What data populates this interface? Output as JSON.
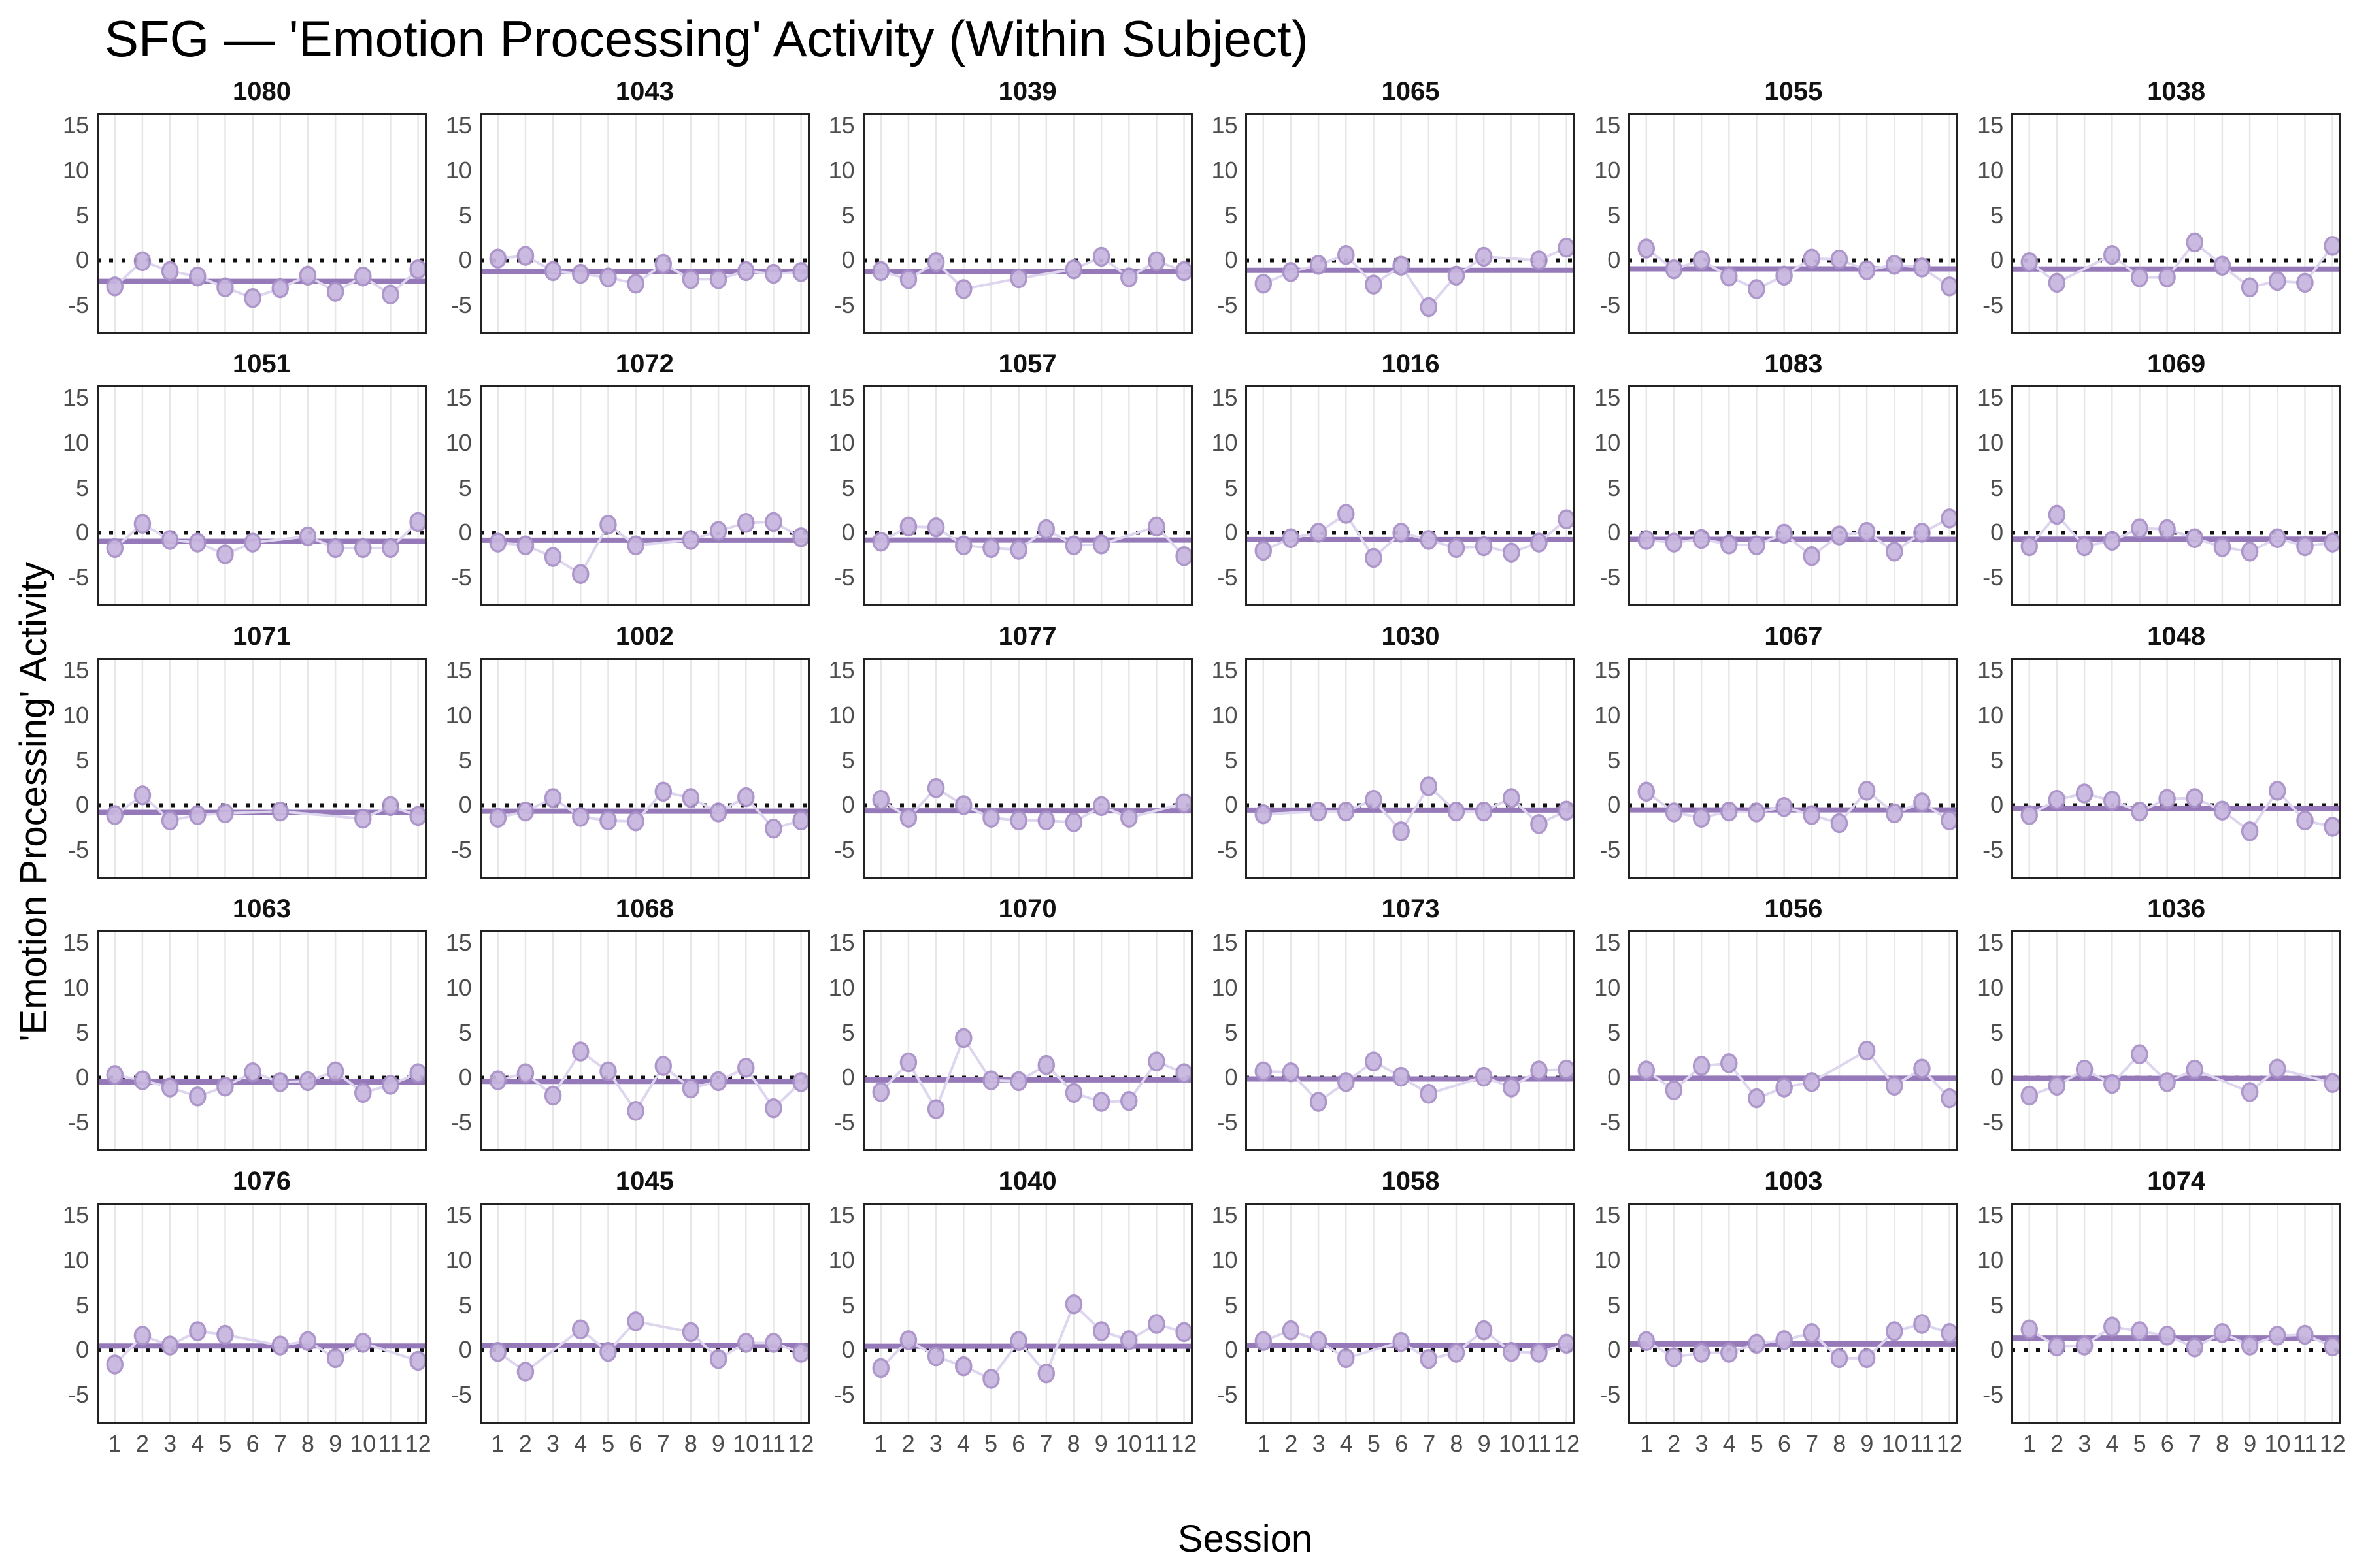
{
  "title": "SFG — 'Emotion Processing' Activity (Within Subject)",
  "ylabel": "'Emotion Processing' Activity",
  "xlabel": "Session",
  "colors": {
    "mean_line": "#9579b8",
    "point_fill": "#c8b6df",
    "point_stroke": "#a78fc7",
    "connector": "#ded5ee",
    "zero_line": "#111111",
    "gridline": "#e7e7e7",
    "panel_border": "#222222",
    "tick_text": "#4d4d4d",
    "title_text": "#000000"
  },
  "chart_data": {
    "type": "scatter",
    "layout": "facet-grid 5 rows x 6 cols, one panel per subject",
    "x_label": "Session",
    "y_label": "'Emotion Processing' Activity",
    "x": [
      1,
      2,
      3,
      4,
      5,
      6,
      7,
      8,
      9,
      10,
      11,
      12
    ],
    "x_tick_labels": [
      "1",
      "2",
      "3",
      "4",
      "5",
      "6",
      "7",
      "8",
      "9",
      "10",
      "11",
      "12"
    ],
    "y_ticks": [
      15,
      10,
      5,
      0,
      -5
    ],
    "ylim": [
      -8.4,
      16.2
    ],
    "grid": "vertical gridlines only",
    "legend": "none",
    "reference_lines": {
      "dotted_zero": 0,
      "solid": "per-facet subject mean"
    },
    "facets": [
      {
        "id": "1080",
        "mean": -2.34,
        "values": [
          -2.9,
          -0.1,
          -1.2,
          -1.8,
          -3.0,
          -4.2,
          -3.1,
          -1.7,
          -3.5,
          -1.8,
          -3.8,
          -1.0
        ]
      },
      {
        "id": "1043",
        "mean": -1.26,
        "values": [
          0.2,
          0.5,
          -1.2,
          -1.5,
          -1.9,
          -2.6,
          -0.4,
          -2.1,
          -2.1,
          -1.2,
          -1.5,
          -1.3
        ]
      },
      {
        "id": "1039",
        "mean": -1.25,
        "values": [
          -1.2,
          -2.1,
          -0.2,
          -3.2,
          null,
          -2.0,
          null,
          -1.0,
          0.4,
          -1.9,
          -0.1,
          -1.2
        ]
      },
      {
        "id": "1065",
        "mean": -1.11,
        "values": [
          -2.6,
          -1.3,
          -0.5,
          0.6,
          -2.7,
          -0.6,
          -5.2,
          -1.7,
          0.4,
          null,
          0.0,
          1.4
        ]
      },
      {
        "id": "1055",
        "mean": -0.95,
        "values": [
          1.3,
          -1.0,
          0.0,
          -1.8,
          -3.2,
          -1.7,
          0.2,
          0.1,
          -1.1,
          -0.5,
          -0.8,
          -2.9
        ]
      },
      {
        "id": "1038",
        "mean": -0.97,
        "values": [
          -0.2,
          -2.5,
          null,
          0.6,
          -1.9,
          -1.9,
          2.0,
          -0.6,
          -3.0,
          -2.3,
          -2.5,
          1.6
        ]
      },
      {
        "id": "1051",
        "mean": -0.95,
        "values": [
          -1.7,
          1.0,
          -0.8,
          -1.1,
          -2.4,
          -1.1,
          null,
          -0.4,
          -1.7,
          -1.7,
          -1.7,
          1.2
        ]
      },
      {
        "id": "1072",
        "mean": -0.83,
        "values": [
          -1.1,
          -1.4,
          -2.7,
          -4.6,
          0.9,
          -1.4,
          null,
          -0.8,
          0.2,
          1.1,
          1.2,
          -0.5
        ]
      },
      {
        "id": "1057",
        "mean": -0.81,
        "values": [
          -1.0,
          0.7,
          0.6,
          -1.4,
          -1.7,
          -1.9,
          0.4,
          -1.4,
          -1.3,
          null,
          0.7,
          -2.6
        ]
      },
      {
        "id": "1016",
        "mean": -0.76,
        "values": [
          -2.0,
          -0.6,
          0.0,
          2.1,
          -2.8,
          0.0,
          -0.8,
          -1.7,
          -1.5,
          -2.2,
          -1.1,
          1.5
        ]
      },
      {
        "id": "1083",
        "mean": -0.73,
        "values": [
          -0.8,
          -1.1,
          -0.7,
          -1.3,
          -1.4,
          -0.1,
          -2.6,
          -0.3,
          0.1,
          -2.1,
          0.0,
          1.6
        ]
      },
      {
        "id": "1069",
        "mean": -0.71,
        "values": [
          -1.5,
          2.0,
          -1.5,
          -0.9,
          0.5,
          0.4,
          -0.6,
          -1.6,
          -2.1,
          -0.6,
          -1.5,
          -1.1
        ]
      },
      {
        "id": "1071",
        "mean": -0.8,
        "values": [
          -1.1,
          1.1,
          -1.7,
          -1.1,
          -0.9,
          null,
          -0.7,
          null,
          null,
          -1.5,
          -0.1,
          -1.2
        ]
      },
      {
        "id": "1002",
        "mean": -0.67,
        "values": [
          -1.4,
          -0.7,
          0.8,
          -1.3,
          -1.7,
          -1.8,
          1.5,
          0.8,
          -0.8,
          0.9,
          -2.6,
          -1.7
        ]
      },
      {
        "id": "1077",
        "mean": -0.63,
        "values": [
          0.6,
          -1.4,
          1.9,
          0.0,
          -1.4,
          -1.7,
          -1.7,
          -1.9,
          -0.1,
          -1.4,
          null,
          0.2
        ]
      },
      {
        "id": "1030",
        "mean": -0.54,
        "values": [
          -1.0,
          null,
          -0.7,
          -0.7,
          0.6,
          -2.9,
          2.1,
          -0.7,
          -0.7,
          0.8,
          -2.1,
          -0.6
        ]
      },
      {
        "id": "1067",
        "mean": -0.52,
        "values": [
          1.5,
          -0.8,
          -1.4,
          -0.7,
          -0.8,
          -0.2,
          -1.1,
          -2.0,
          1.6,
          -0.9,
          0.3,
          -1.7
        ]
      },
      {
        "id": "1048",
        "mean": -0.33,
        "values": [
          -1.1,
          0.6,
          1.3,
          0.5,
          -0.7,
          0.7,
          0.8,
          -0.6,
          -2.9,
          1.6,
          -1.7,
          -2.4
        ]
      },
      {
        "id": "1063",
        "mean": -0.48,
        "values": [
          0.3,
          -0.3,
          -1.1,
          -2.1,
          -1.0,
          0.6,
          -0.5,
          -0.4,
          0.7,
          -1.7,
          -0.8,
          0.5
        ]
      },
      {
        "id": "1068",
        "mean": -0.42,
        "values": [
          -0.3,
          0.5,
          -2.0,
          2.9,
          0.7,
          -3.7,
          1.3,
          -1.2,
          -0.4,
          1.1,
          -3.4,
          -0.5
        ]
      },
      {
        "id": "1070",
        "mean": -0.25,
        "values": [
          -1.6,
          1.7,
          -3.5,
          4.4,
          -0.3,
          -0.4,
          1.4,
          -1.7,
          -2.7,
          -2.6,
          1.8,
          0.5
        ]
      },
      {
        "id": "1073",
        "mean": -0.15,
        "values": [
          0.7,
          0.6,
          -2.7,
          -0.5,
          1.8,
          0.1,
          -1.8,
          null,
          0.1,
          -1.1,
          0.8,
          0.9
        ]
      },
      {
        "id": "1056",
        "mean": -0.07,
        "values": [
          0.8,
          -1.4,
          1.3,
          1.6,
          -2.3,
          -1.1,
          -0.5,
          null,
          3.0,
          -0.9,
          1.0,
          -2.3
        ]
      },
      {
        "id": "1036",
        "mean": -0.09,
        "values": [
          -2.0,
          -0.9,
          0.9,
          -0.7,
          2.6,
          -0.5,
          0.9,
          null,
          -1.6,
          1.0,
          null,
          -0.6
        ]
      },
      {
        "id": "1076",
        "mean": 0.45,
        "values": [
          -1.6,
          1.6,
          0.5,
          2.1,
          1.7,
          null,
          0.5,
          1.0,
          -0.9,
          0.8,
          null,
          -1.2
        ]
      },
      {
        "id": "1045",
        "mean": 0.5,
        "values": [
          -0.2,
          -2.4,
          null,
          2.3,
          -0.2,
          3.2,
          null,
          2.0,
          -1.0,
          0.8,
          0.8,
          -0.3
        ]
      },
      {
        "id": "1040",
        "mean": 0.42,
        "values": [
          -2.0,
          1.1,
          -0.7,
          -1.8,
          -3.2,
          1.0,
          -2.6,
          5.1,
          2.1,
          1.1,
          2.9,
          2.0
        ]
      },
      {
        "id": "1058",
        "mean": 0.48,
        "values": [
          1.0,
          2.2,
          1.0,
          -0.9,
          null,
          0.9,
          -1.0,
          -0.3,
          2.2,
          -0.2,
          -0.3,
          0.7
        ]
      },
      {
        "id": "1003",
        "mean": 0.7,
        "values": [
          1.0,
          -0.8,
          -0.3,
          -0.3,
          0.7,
          1.1,
          1.9,
          -0.9,
          -0.9,
          2.1,
          2.9,
          1.9
        ]
      },
      {
        "id": "1074",
        "mean": 1.33,
        "values": [
          2.3,
          0.4,
          0.5,
          2.6,
          2.1,
          1.6,
          0.3,
          1.9,
          0.5,
          1.6,
          1.7,
          0.4
        ]
      }
    ]
  }
}
